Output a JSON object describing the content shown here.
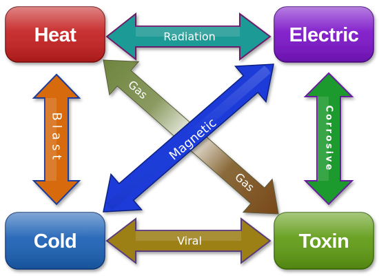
{
  "nodes": {
    "heat": "Heat",
    "electric": "Electric",
    "cold": "Cold",
    "toxin": "Toxin"
  },
  "arrows": {
    "radiation": "Radiation",
    "viral": "Viral",
    "blast": "Blast",
    "corrosive": "Corrosive",
    "magnetic": "Magnetic",
    "gas": "Gas"
  },
  "colors": {
    "heat": "#c41e1e",
    "electric": "#7a12c8",
    "cold": "#1a5fb4",
    "toxin": "#5e9a12",
    "radiation": "#1f9a96",
    "viral": "#9c8018",
    "blast": "#d66b10",
    "corrosive": "#1e9a2e",
    "magnetic": "#1a3ad8",
    "gas_start": "#6f8238",
    "gas_end": "#7a4a1c"
  }
}
